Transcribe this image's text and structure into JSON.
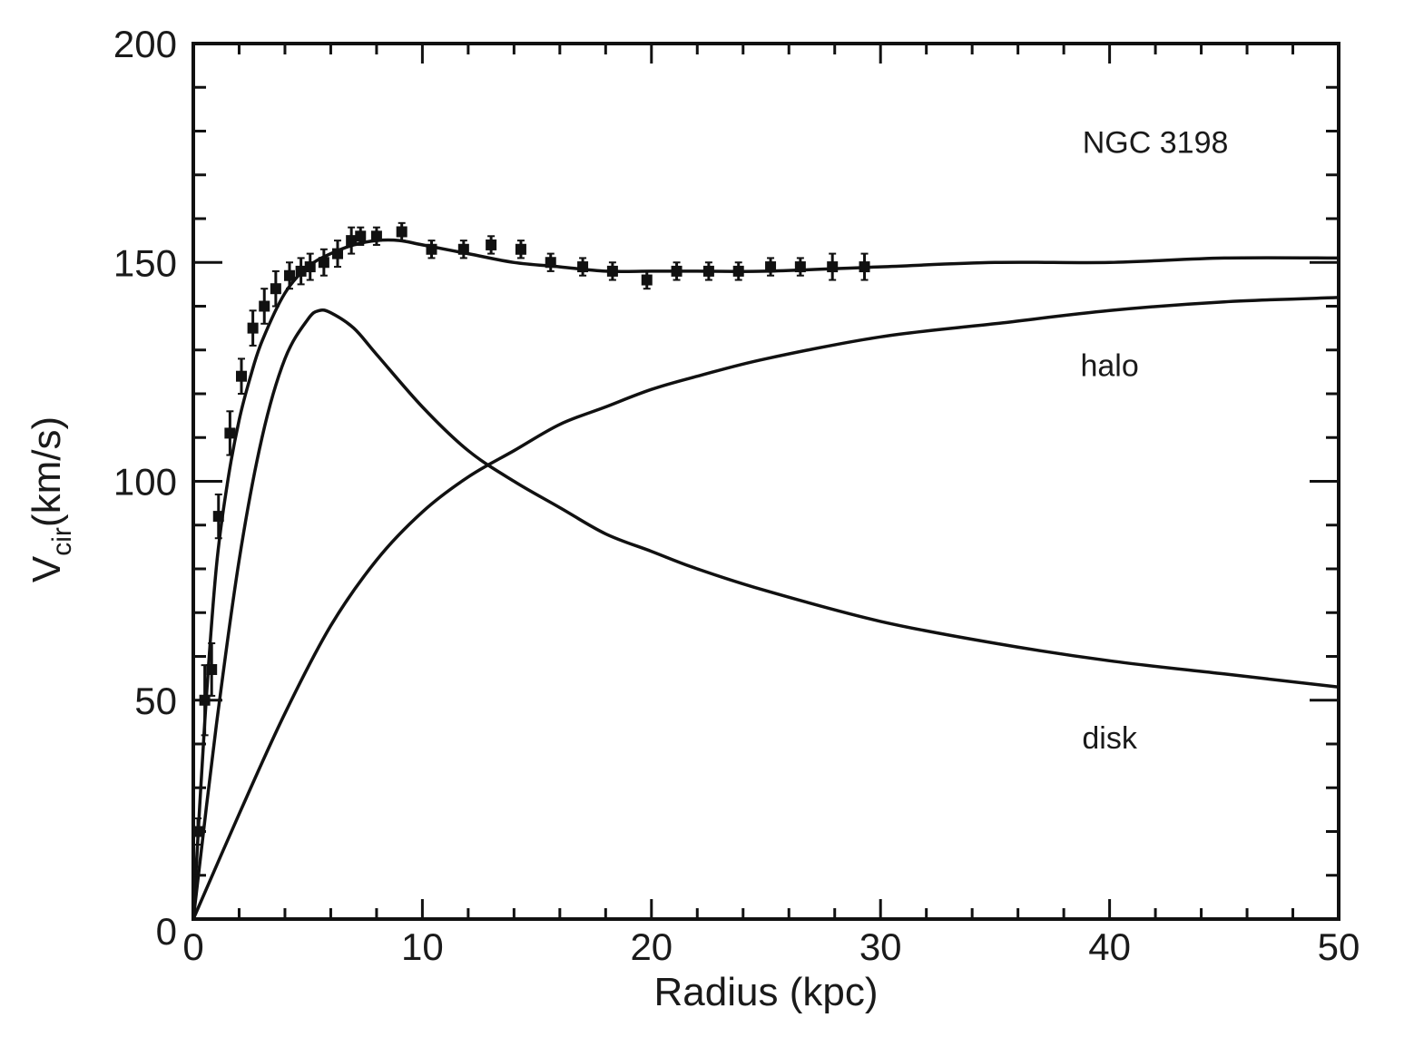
{
  "chart_data": {
    "type": "scatter",
    "title": "",
    "xlabel": "Radius (kpc)",
    "ylabel_main": "V",
    "ylabel_sub": "cir",
    "ylabel_rest": "(km/s)",
    "xlim": [
      0,
      50
    ],
    "ylim": [
      0,
      200
    ],
    "x_ticks": [
      0,
      10,
      20,
      30,
      40,
      50
    ],
    "x_tick_labels": [
      "0",
      "10",
      "20",
      "30",
      "40",
      "50"
    ],
    "y_ticks": [
      0,
      50,
      100,
      150,
      200
    ],
    "y_tick_labels": [
      "0",
      "50",
      "100",
      "150",
      "200"
    ],
    "x_minor_step": 2,
    "y_minor_step": 10,
    "grid": false,
    "annotations": [
      {
        "text": "NGC 3198",
        "x": 42,
        "y": 175
      },
      {
        "text": "halo",
        "x": 40,
        "y": 124
      },
      {
        "text": "disk",
        "x": 40,
        "y": 39
      }
    ],
    "observed": {
      "x": [
        0.2,
        0.5,
        0.8,
        1.1,
        1.6,
        2.1,
        2.6,
        3.1,
        3.6,
        4.2,
        4.7,
        5.1,
        5.7,
        6.3,
        6.9,
        7.3,
        8.0,
        9.1,
        10.4,
        11.8,
        13.0,
        14.3,
        15.6,
        17.0,
        18.3,
        19.8,
        21.1,
        22.5,
        23.8,
        25.2,
        26.5,
        27.9,
        29.3
      ],
      "y": [
        20,
        50,
        57,
        92,
        111,
        124,
        135,
        140,
        144,
        147,
        148,
        149,
        150,
        152,
        155,
        156,
        156,
        157,
        153,
        153,
        154,
        153,
        150,
        149,
        148,
        146,
        148,
        148,
        148,
        149,
        149,
        149,
        149
      ],
      "err": [
        3,
        8,
        6,
        5,
        5,
        4,
        4,
        4,
        4,
        3,
        3,
        3,
        3,
        3,
        3,
        2,
        2,
        2,
        2,
        2,
        2,
        2,
        2,
        2,
        2,
        2,
        2,
        2,
        2,
        2,
        2,
        3,
        3
      ]
    },
    "series": [
      {
        "name": "",
        "x": [
          0,
          0.5,
          1,
          1.5,
          2,
          2.5,
          3,
          4,
          5,
          6,
          7,
          8,
          9,
          10,
          12,
          14,
          16,
          18,
          20,
          22,
          25,
          30,
          35,
          40,
          45,
          50
        ],
        "y": [
          0,
          45,
          80,
          100,
          114,
          124,
          132,
          143,
          149,
          152,
          154,
          155,
          155,
          154,
          152,
          150,
          149,
          148,
          148,
          148,
          148,
          149,
          150,
          150,
          151,
          151
        ]
      },
      {
        "name": "halo",
        "x": [
          0,
          2,
          4,
          6,
          8,
          10,
          12,
          14,
          16,
          18,
          20,
          22,
          25,
          30,
          35,
          40,
          45,
          50
        ],
        "y": [
          0,
          24,
          47,
          67,
          82,
          93,
          101,
          107,
          113,
          117,
          121,
          124,
          128,
          133,
          136,
          139,
          141,
          142
        ]
      },
      {
        "name": "disk",
        "x": [
          0,
          1,
          2,
          3,
          4,
          5,
          5.5,
          6,
          7,
          8,
          10,
          12,
          14,
          16,
          18,
          20,
          22,
          25,
          30,
          35,
          40,
          45,
          50
        ],
        "y": [
          0,
          44,
          82,
          110,
          128,
          137,
          139,
          138.5,
          135,
          129,
          117,
          107,
          100,
          94,
          88,
          84,
          80,
          75,
          68,
          63,
          59,
          56,
          53
        ]
      }
    ]
  }
}
